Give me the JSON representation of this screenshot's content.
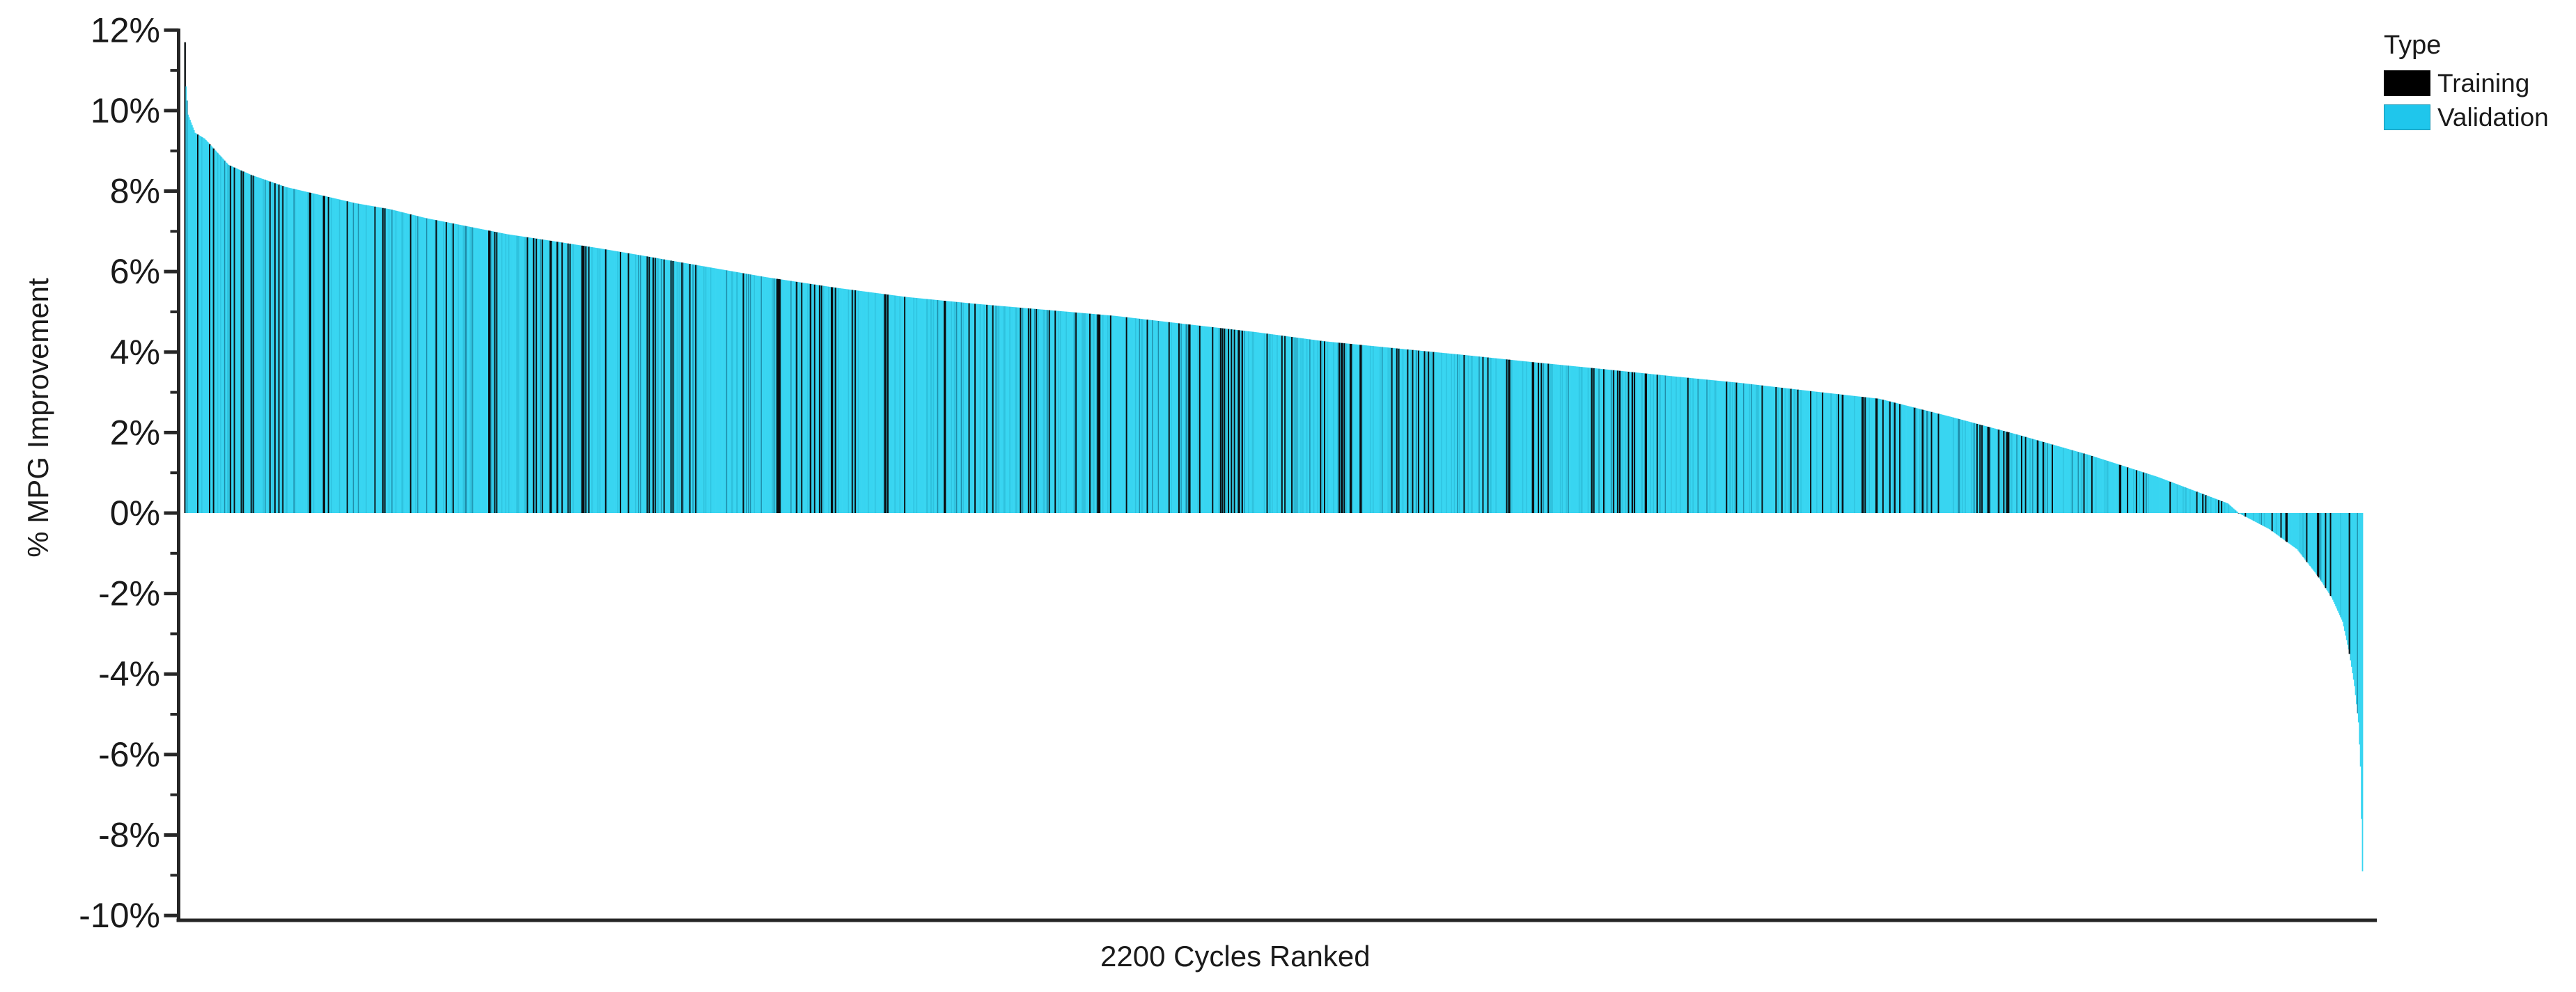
{
  "chart_data": {
    "type": "bar",
    "title": "",
    "xlabel": "2200 Cycles Ranked",
    "ylabel": "% MPG Improvement",
    "n_bars": 2200,
    "ylim": [
      -10,
      12
    ],
    "y_unit": "%",
    "grid": false,
    "background": "#ffffff",
    "axis_color": "#262626",
    "text_color": "#1a1a1a",
    "y_tick_values": [
      12,
      10,
      8,
      6,
      4,
      2,
      0,
      -2,
      -4,
      -6,
      -8,
      -10
    ],
    "y_tick_labels": [
      "12%",
      "10%",
      "8%",
      "6%",
      "4%",
      "2%",
      "0%",
      "-2%",
      "-4%",
      "-6%",
      "-8%",
      "-10%"
    ],
    "y_minor_tick_values": [
      11,
      9,
      7,
      5,
      3,
      1,
      -1,
      -3,
      -5,
      -7,
      -9
    ],
    "legend": {
      "title": "Type",
      "position": "top-right",
      "entries": [
        {
          "label": "Training",
          "color": "#000000"
        },
        {
          "label": "Validation",
          "color": "#1fc6ec"
        }
      ]
    },
    "series_note": "2200 cycles sorted descending by % MPG improvement; each bar colored by dataset type",
    "value_profile": [
      [
        0,
        11.7
      ],
      [
        1,
        10.6
      ],
      [
        3,
        9.9
      ],
      [
        10,
        9.45
      ],
      [
        20,
        9.3
      ],
      [
        44,
        8.65
      ],
      [
        67,
        8.4
      ],
      [
        102,
        8.1
      ],
      [
        137,
        7.9
      ],
      [
        172,
        7.7
      ],
      [
        207,
        7.55
      ],
      [
        243,
        7.33
      ],
      [
        278,
        7.16
      ],
      [
        325,
        6.93
      ],
      [
        371,
        6.76
      ],
      [
        418,
        6.58
      ],
      [
        466,
        6.38
      ],
      [
        489,
        6.28
      ],
      [
        587,
        5.86
      ],
      [
        657,
        5.6
      ],
      [
        728,
        5.37
      ],
      [
        798,
        5.2
      ],
      [
        869,
        5.05
      ],
      [
        939,
        4.9
      ],
      [
        1009,
        4.7
      ],
      [
        1080,
        4.5
      ],
      [
        1150,
        4.27
      ],
      [
        1220,
        4.1
      ],
      [
        1291,
        3.93
      ],
      [
        1361,
        3.75
      ],
      [
        1431,
        3.58
      ],
      [
        1502,
        3.4
      ],
      [
        1572,
        3.23
      ],
      [
        1642,
        3.03
      ],
      [
        1711,
        2.84
      ],
      [
        1782,
        2.4
      ],
      [
        1852,
        1.94
      ],
      [
        1922,
        1.45
      ],
      [
        1992,
        0.9
      ],
      [
        2063,
        0.24
      ],
      [
        2074,
        0.0
      ],
      [
        2105,
        -0.4
      ],
      [
        2133,
        -0.9
      ],
      [
        2155,
        -1.6
      ],
      [
        2168,
        -2.1
      ],
      [
        2179,
        -2.7
      ],
      [
        2186,
        -3.5
      ],
      [
        2191,
        -4.3
      ],
      [
        2195,
        -5.2
      ],
      [
        2197,
        -6.3
      ],
      [
        2199,
        -8.9
      ]
    ],
    "training_sampling": {
      "fraction": 0.1,
      "seed": 987654321
    },
    "colors": {
      "validation_bar": "#38d5f1",
      "validation_bar_shade": "#2fc2de",
      "validation_bar_deep": "#1f8ca8",
      "training_bar": "#0a0f12"
    }
  }
}
